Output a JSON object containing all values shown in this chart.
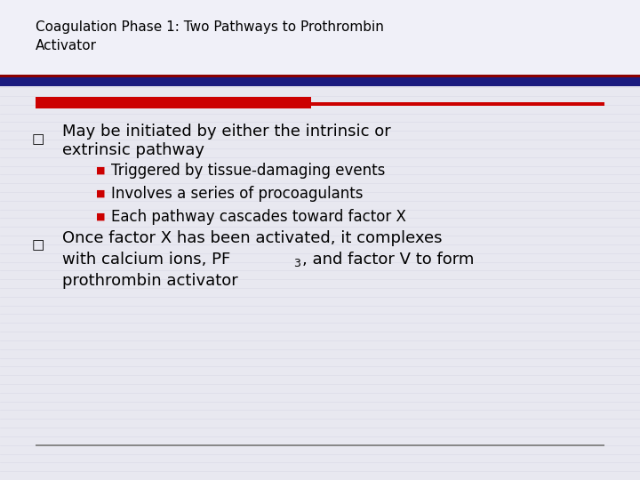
{
  "title_line1": "Coagulation Phase 1: Two Pathways to Prothrombin",
  "title_line2": "Activator",
  "bg_color": "#E8E8F0",
  "title_font_size": 11,
  "title_color": "#000000",
  "header_bar_dark_color": "#1a1a7e",
  "header_bar_red_color": "#8b0000",
  "content_bar_red_color": "#cc0000",
  "content_bar_red_right_color": "#8b0000",
  "footer_line_color": "#888888",
  "bullet_sq_color": "#000000",
  "sub_bullet_color": "#cc0000",
  "text_color": "#000000",
  "bullet1_line1": "May be initiated by either the intrinsic or",
  "bullet1_line2": "extrinsic pathway",
  "sub1": "Triggered by tissue-damaging events",
  "sub2": "Involves a series of procoagulants",
  "sub3": "Each pathway cascades toward factor X",
  "bullet2_line1": "Once factor X has been activated, it complexes",
  "bullet2_line2a": "with calcium ions, PF",
  "bullet2_sub": "3",
  "bullet2_line2b": ", and factor V to form",
  "bullet2_line3": "prothrombin activator",
  "font_size_main": 13,
  "font_size_sub": 12,
  "font_size_bullet": 11,
  "stripe_color": "#d0d0e0",
  "stripe_alpha": 0.5
}
